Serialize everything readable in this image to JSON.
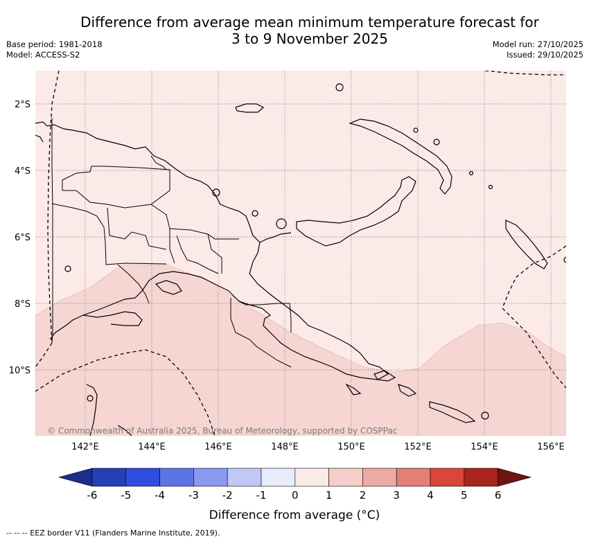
{
  "title_line1": "Difference from average mean minimum temperature forecast for",
  "title_line2": "3 to 9 November 2025",
  "base_period": "Base period: 1981-2018",
  "model": "Model: ACCESS-S2",
  "model_run": "Model run: 27/10/2025",
  "issued": "Issued: 29/10/2025",
  "lat_labels": [
    "2°S",
    "4°S",
    "6°S",
    "8°S",
    "10°S"
  ],
  "lon_labels": [
    "142°E",
    "144°E",
    "146°E",
    "148°E",
    "150°E",
    "152°E",
    "154°E",
    "156°E"
  ],
  "copyright": "© Commonwealth of Australia 2025, Bureau of Meteorology, supported by COSPPac",
  "colorbar": {
    "title": "Difference from average (°C)",
    "ticks": [
      "-6",
      "-5",
      "-4",
      "-3",
      "-2",
      "-1",
      "0",
      "1",
      "2",
      "3",
      "4",
      "5",
      "6"
    ],
    "colors": [
      "#1b2f8a",
      "#2440b4",
      "#2f4ee0",
      "#5b74e8",
      "#8899ef",
      "#c0c8f6",
      "#e8ebfb",
      "#fbeae8",
      "#f5cec9",
      "#eda9a3",
      "#e47f76",
      "#d9463b",
      "#a8241d",
      "#6e1510"
    ]
  },
  "legend_note": "-- -- -- EEZ border V11 (Flanders Marine Institute, 2019).",
  "map_fill": {
    "near_normal": "#fbeae8",
    "above_1_to_2": "#f5d6d2"
  }
}
